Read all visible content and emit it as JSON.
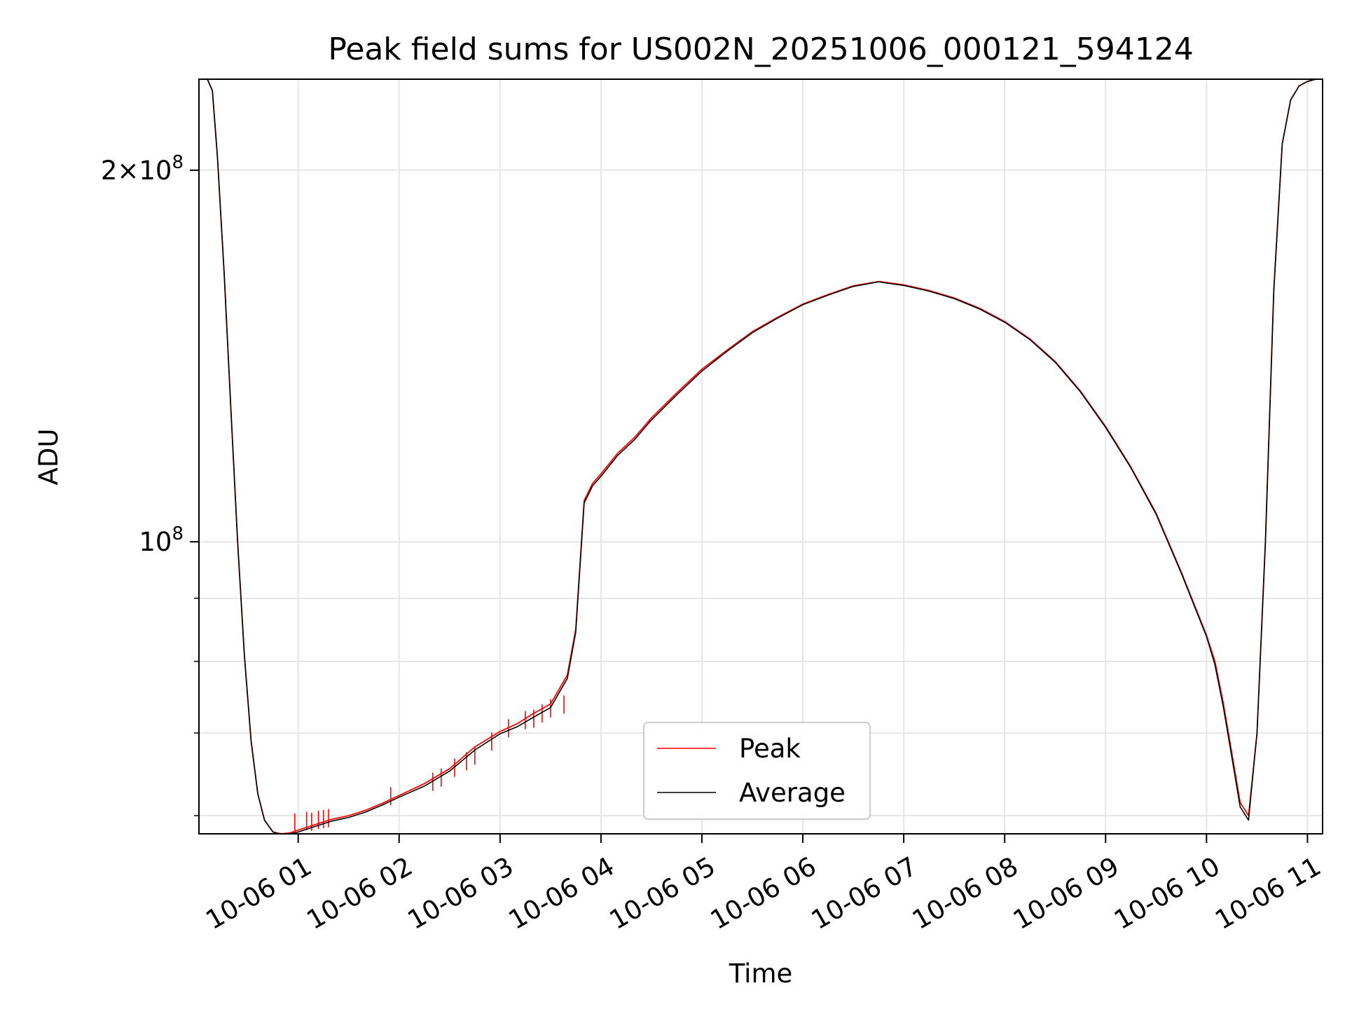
{
  "chart_data": {
    "type": "line",
    "title": "Peak field sums for US002N_20251006_000121_594124",
    "xlabel": "Time",
    "ylabel": "ADU",
    "yscale": "log",
    "ylim": [
      58000000,
      237000000
    ],
    "xlim": [
      "2025-10-06T00:01",
      "2025-10-06T11:09"
    ],
    "grid": true,
    "legend_position": "lower center",
    "x_ticks": [
      "2025-10-06T01:00",
      "2025-10-06T02:00",
      "2025-10-06T03:00",
      "2025-10-06T04:00",
      "2025-10-06T05:00",
      "2025-10-06T06:00",
      "2025-10-06T07:00",
      "2025-10-06T08:00",
      "2025-10-06T09:00",
      "2025-10-06T10:00",
      "2025-10-06T11:00"
    ],
    "x_tick_labels": [
      "10-06 01",
      "10-06 02",
      "10-06 03",
      "10-06 04",
      "10-06 05",
      "10-06 06",
      "10-06 07",
      "10-06 08",
      "10-06 09",
      "10-06 10",
      "10-06 11"
    ],
    "y_major_ticks": [
      100000000,
      200000000
    ],
    "y_major_tick_labels": [
      {
        "base": "10",
        "mant": "",
        "exp": "8"
      },
      {
        "base": "10",
        "mant": "2",
        "exp": "8"
      }
    ],
    "y_minor_ticks": [
      60000000,
      70000000,
      80000000,
      90000000
    ],
    "series": [
      {
        "name": "Peak",
        "color": "#ff0000",
        "x": [
          "2025-10-06T00:06",
          "2025-10-06T00:09",
          "2025-10-06T00:12",
          "2025-10-06T00:16",
          "2025-10-06T00:20",
          "2025-10-06T00:24",
          "2025-10-06T00:28",
          "2025-10-06T00:32",
          "2025-10-06T00:36",
          "2025-10-06T00:40",
          "2025-10-06T00:45",
          "2025-10-06T00:50",
          "2025-10-06T00:55",
          "2025-10-06T01:00",
          "2025-10-06T01:10",
          "2025-10-06T01:20",
          "2025-10-06T01:30",
          "2025-10-06T01:40",
          "2025-10-06T01:50",
          "2025-10-06T02:00",
          "2025-10-06T02:15",
          "2025-10-06T02:30",
          "2025-10-06T02:45",
          "2025-10-06T03:00",
          "2025-10-06T03:10",
          "2025-10-06T03:20",
          "2025-10-06T03:30",
          "2025-10-06T03:40",
          "2025-10-06T03:45",
          "2025-10-06T03:50",
          "2025-10-06T03:55",
          "2025-10-06T04:00",
          "2025-10-06T04:10",
          "2025-10-06T04:20",
          "2025-10-06T04:30",
          "2025-10-06T04:45",
          "2025-10-06T05:00",
          "2025-10-06T05:15",
          "2025-10-06T05:30",
          "2025-10-06T05:45",
          "2025-10-06T06:00",
          "2025-10-06T06:15",
          "2025-10-06T06:30",
          "2025-10-06T06:45",
          "2025-10-06T07:00",
          "2025-10-06T07:15",
          "2025-10-06T07:30",
          "2025-10-06T07:45",
          "2025-10-06T08:00",
          "2025-10-06T08:15",
          "2025-10-06T08:30",
          "2025-10-06T08:45",
          "2025-10-06T09:00",
          "2025-10-06T09:15",
          "2025-10-06T09:30",
          "2025-10-06T09:45",
          "2025-10-06T10:00",
          "2025-10-06T10:05",
          "2025-10-06T10:10",
          "2025-10-06T10:15",
          "2025-10-06T10:20",
          "2025-10-06T10:25",
          "2025-10-06T10:30",
          "2025-10-06T10:35",
          "2025-10-06T10:40",
          "2025-10-06T10:45",
          "2025-10-06T10:50",
          "2025-10-06T10:55",
          "2025-10-06T11:00",
          "2025-10-06T11:05",
          "2025-10-06T11:09"
        ],
        "y": [
          237000000,
          232000000,
          205000000,
          165000000,
          128000000,
          100000000,
          81000000,
          69000000,
          62500000,
          59500000,
          58200000,
          58000000,
          58100000,
          58400000,
          59000000,
          59600000,
          60000000,
          60600000,
          61400000,
          62300000,
          63700000,
          65500000,
          68200000,
          70200000,
          71200000,
          72600000,
          73900000,
          78000000,
          85000000,
          108000000,
          111500000,
          113500000,
          118000000,
          121500000,
          126000000,
          132000000,
          138000000,
          143000000,
          148000000,
          152000000,
          155800000,
          158600000,
          161200000,
          162500000,
          161500000,
          159800000,
          157600000,
          154600000,
          150800000,
          146000000,
          140000000,
          132500000,
          124000000,
          115000000,
          105500000,
          94500000,
          84000000,
          80000000,
          74000000,
          67500000,
          61500000,
          60000000,
          70000000,
          100000000,
          160000000,
          210000000,
          228000000,
          234000000,
          236000000,
          237000000,
          237000000
        ],
        "spikes": [
          {
            "x": "2025-10-06T00:58",
            "y": 59300000
          },
          {
            "x": "2025-10-06T01:05",
            "y": 59500000
          },
          {
            "x": "2025-10-06T01:08",
            "y": 59400000
          },
          {
            "x": "2025-10-06T01:12",
            "y": 59600000
          },
          {
            "x": "2025-10-06T01:15",
            "y": 59700000
          },
          {
            "x": "2025-10-06T01:18",
            "y": 59800000
          },
          {
            "x": "2025-10-06T01:55",
            "y": 62300000
          },
          {
            "x": "2025-10-06T02:20",
            "y": 64000000
          },
          {
            "x": "2025-10-06T02:25",
            "y": 64500000
          },
          {
            "x": "2025-10-06T02:33",
            "y": 65700000
          },
          {
            "x": "2025-10-06T02:40",
            "y": 66500000
          },
          {
            "x": "2025-10-06T02:45",
            "y": 67200000
          },
          {
            "x": "2025-10-06T02:55",
            "y": 69000000
          },
          {
            "x": "2025-10-06T03:05",
            "y": 70700000
          },
          {
            "x": "2025-10-06T03:15",
            "y": 71800000
          },
          {
            "x": "2025-10-06T03:20",
            "y": 72000000
          },
          {
            "x": "2025-10-06T03:25",
            "y": 72700000
          },
          {
            "x": "2025-10-06T03:30",
            "y": 73400000
          },
          {
            "x": "2025-10-06T03:38",
            "y": 73900000
          }
        ]
      },
      {
        "name": "Average",
        "color": "#000000",
        "x": [
          "2025-10-06T00:06",
          "2025-10-06T00:09",
          "2025-10-06T00:12",
          "2025-10-06T00:16",
          "2025-10-06T00:20",
          "2025-10-06T00:24",
          "2025-10-06T00:28",
          "2025-10-06T00:32",
          "2025-10-06T00:36",
          "2025-10-06T00:40",
          "2025-10-06T00:45",
          "2025-10-06T00:50",
          "2025-10-06T00:55",
          "2025-10-06T01:00",
          "2025-10-06T01:10",
          "2025-10-06T01:20",
          "2025-10-06T01:30",
          "2025-10-06T01:40",
          "2025-10-06T01:50",
          "2025-10-06T02:00",
          "2025-10-06T02:15",
          "2025-10-06T02:30",
          "2025-10-06T02:45",
          "2025-10-06T03:00",
          "2025-10-06T03:10",
          "2025-10-06T03:20",
          "2025-10-06T03:30",
          "2025-10-06T03:40",
          "2025-10-06T03:45",
          "2025-10-06T03:50",
          "2025-10-06T03:55",
          "2025-10-06T04:00",
          "2025-10-06T04:10",
          "2025-10-06T04:20",
          "2025-10-06T04:30",
          "2025-10-06T04:45",
          "2025-10-06T05:00",
          "2025-10-06T05:15",
          "2025-10-06T05:30",
          "2025-10-06T05:45",
          "2025-10-06T06:00",
          "2025-10-06T06:15",
          "2025-10-06T06:30",
          "2025-10-06T06:45",
          "2025-10-06T07:00",
          "2025-10-06T07:15",
          "2025-10-06T07:30",
          "2025-10-06T07:45",
          "2025-10-06T08:00",
          "2025-10-06T08:15",
          "2025-10-06T08:30",
          "2025-10-06T08:45",
          "2025-10-06T09:00",
          "2025-10-06T09:15",
          "2025-10-06T09:30",
          "2025-10-06T09:45",
          "2025-10-06T10:00",
          "2025-10-06T10:05",
          "2025-10-06T10:10",
          "2025-10-06T10:15",
          "2025-10-06T10:20",
          "2025-10-06T10:25",
          "2025-10-06T10:30",
          "2025-10-06T10:35",
          "2025-10-06T10:40",
          "2025-10-06T10:45",
          "2025-10-06T10:50",
          "2025-10-06T10:55",
          "2025-10-06T11:00",
          "2025-10-06T11:05",
          "2025-10-06T11:09"
        ],
        "y": [
          237000000,
          232000000,
          205000000,
          165000000,
          128000000,
          100000000,
          81000000,
          69000000,
          62500000,
          59500000,
          58200000,
          57900000,
          58000000,
          58200000,
          58800000,
          59400000,
          59800000,
          60400000,
          61200000,
          62100000,
          63400000,
          65200000,
          67800000,
          69900000,
          70800000,
          72100000,
          73400000,
          77500000,
          84500000,
          107500000,
          111000000,
          113000000,
          117500000,
          121000000,
          125500000,
          131500000,
          137500000,
          142700000,
          147700000,
          151800000,
          155600000,
          158400000,
          161000000,
          162400000,
          161300000,
          159600000,
          157400000,
          154400000,
          150600000,
          145800000,
          139800000,
          132300000,
          123800000,
          114800000,
          105300000,
          94300000,
          83800000,
          79500000,
          73500000,
          67000000,
          61000000,
          59500000,
          70000000,
          100000000,
          160000000,
          210000000,
          228000000,
          234000000,
          236000000,
          237000000,
          237000000
        ]
      }
    ]
  }
}
